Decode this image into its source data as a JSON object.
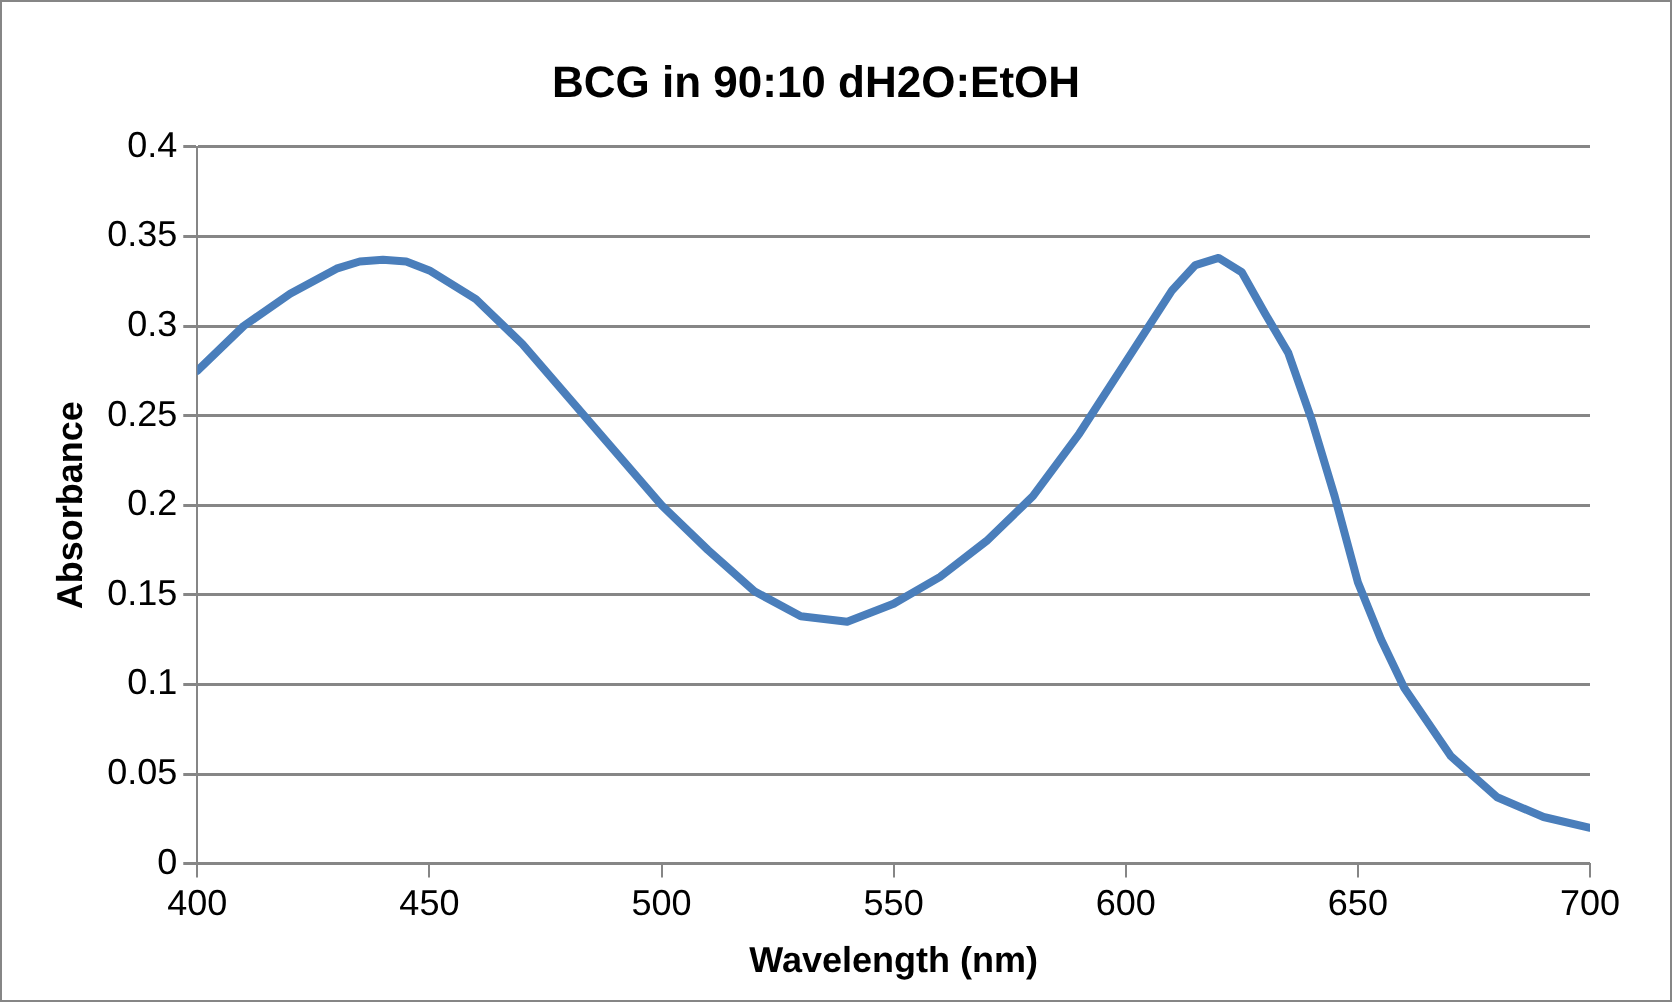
{
  "chart_data": {
    "type": "line",
    "title": "BCG in 90:10 dH2O:EtOH",
    "xlabel": "Wavelength (nm)",
    "ylabel": "Absorbance",
    "x": [
      400,
      410,
      420,
      430,
      435,
      440,
      445,
      450,
      460,
      470,
      480,
      490,
      500,
      510,
      520,
      530,
      540,
      550,
      560,
      570,
      580,
      590,
      600,
      610,
      615,
      620,
      625,
      630,
      635,
      640,
      645,
      650,
      655,
      660,
      670,
      680,
      690,
      700
    ],
    "series": [
      {
        "color": "#4a7ebb",
        "values": [
          0.275,
          0.3,
          0.318,
          0.332,
          0.336,
          0.337,
          0.336,
          0.331,
          0.315,
          0.29,
          0.26,
          0.23,
          0.2,
          0.175,
          0.152,
          0.138,
          0.135,
          0.145,
          0.16,
          0.18,
          0.205,
          0.24,
          0.28,
          0.32,
          0.334,
          0.338,
          0.33,
          0.307,
          0.285,
          0.248,
          0.205,
          0.157,
          0.125,
          0.098,
          0.06,
          0.037,
          0.026,
          0.02
        ]
      }
    ],
    "xlim": [
      400,
      700
    ],
    "xticks": [
      400,
      450,
      500,
      550,
      600,
      650,
      700
    ],
    "ylim": [
      0,
      0.4
    ],
    "yticks": [
      0,
      0.05,
      0.1,
      0.15,
      0.2,
      0.25,
      0.3,
      0.35,
      0.4
    ],
    "grid": "y",
    "legend": false,
    "marker": "none",
    "line_style": "solid"
  }
}
